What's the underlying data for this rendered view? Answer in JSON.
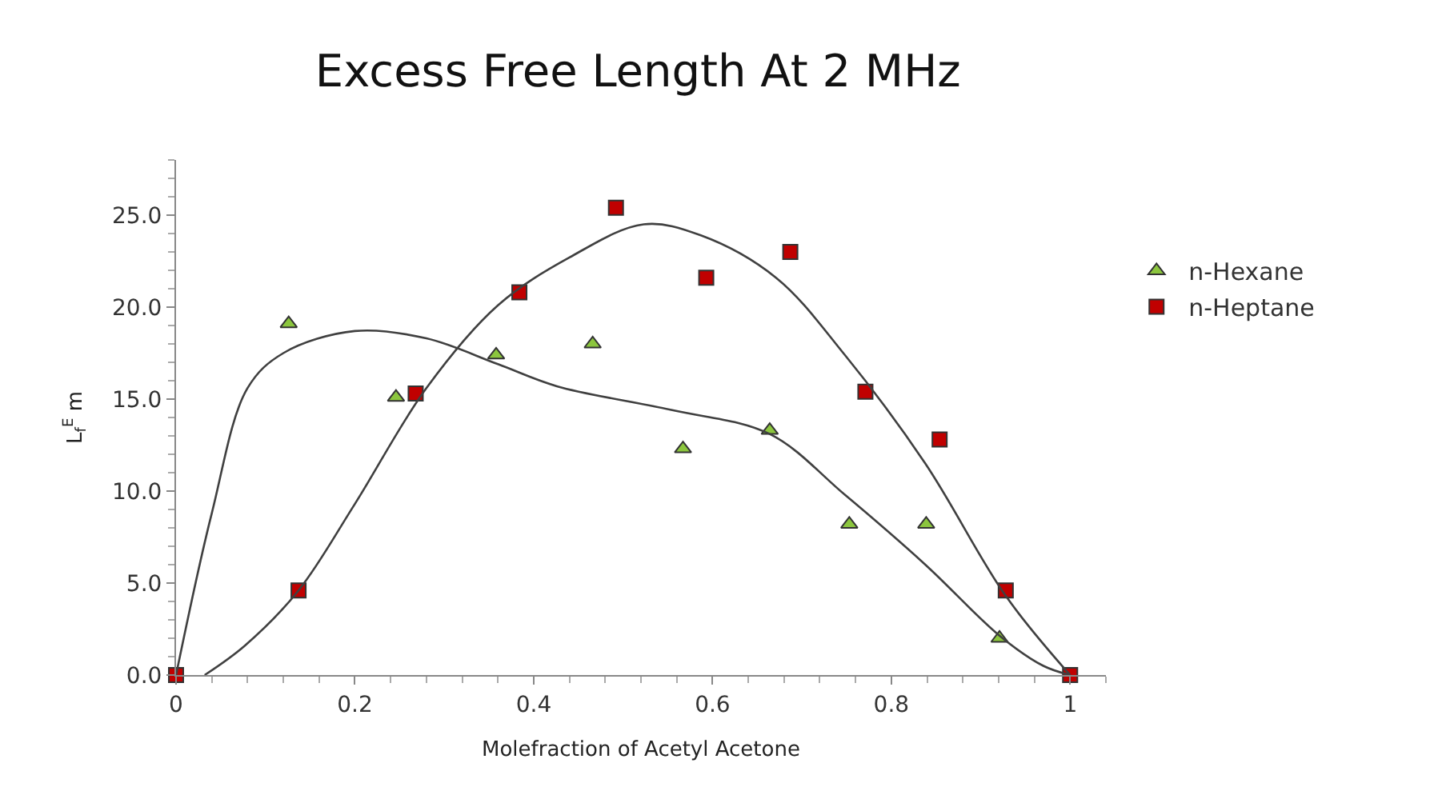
{
  "chart_data": {
    "type": "scatter",
    "title": "Excess Free Length At 2 MHz",
    "xlabel": "Molefraction of Acetyl Acetone",
    "ylabel": "L$_{f}$$^{E}$ m",
    "xlim": [
      0,
      1.04
    ],
    "xticks": [
      0,
      0.2,
      0.4,
      0.6,
      0.8,
      1
    ],
    "ylim": [
      0,
      28
    ],
    "yticks": [
      {
        "value": 0,
        "label": "0.0"
      },
      {
        "value": 5,
        "label": "5.0"
      },
      {
        "value": 10,
        "label": "10.0"
      },
      {
        "value": 15,
        "label": "15.0"
      },
      {
        "value": 20,
        "label": "20.0"
      },
      {
        "value": 25,
        "label": "25.0"
      }
    ],
    "grid": false,
    "legend": "right",
    "series": [
      {
        "name": "n-Hexane",
        "marker": "triangle",
        "color": "#8cc63e",
        "x": [
          0.126,
          0.246,
          0.358,
          0.466,
          0.567,
          0.664,
          0.753,
          0.839,
          0.921
        ],
        "values": [
          19.1,
          15.1,
          17.4,
          18.0,
          12.3,
          13.3,
          8.2,
          8.2,
          2.0
        ]
      },
      {
        "name": "n-Heptane",
        "marker": "square",
        "color": "#c00000",
        "x": [
          0,
          0.137,
          0.268,
          0.384,
          0.492,
          0.593,
          0.687,
          0.771,
          0.854,
          0.928,
          1
        ],
        "values": [
          0,
          4.6,
          15.3,
          20.8,
          25.4,
          21.6,
          23.0,
          15.4,
          12.8,
          4.6,
          0
        ]
      },
      {
        "type": "line",
        "color": "#404040",
        "x": [
          0,
          0.04,
          0.08,
          0.12,
          0.2,
          0.28,
          0.36,
          0.426,
          0.555,
          0.664,
          0.748,
          0.838,
          0.922,
          0.97,
          1
        ],
        "values": [
          0,
          8.8,
          15.6,
          17.5,
          18.7,
          18.3,
          16.9,
          15.7,
          14.4,
          13.1,
          9.8,
          6.0,
          2.1,
          0.5,
          0
        ]
      },
      {
        "type": "line",
        "color": "#404040",
        "x": [
          0.032,
          0.077,
          0.137,
          0.2,
          0.28,
          0.36,
          0.44,
          0.523,
          0.587,
          0.671,
          0.748,
          0.838,
          0.928,
          1
        ],
        "values": [
          0,
          1.6,
          4.6,
          9.3,
          15.6,
          20.1,
          22.7,
          24.5,
          23.9,
          21.6,
          17.4,
          11.5,
          4.3,
          0
        ]
      }
    ]
  }
}
